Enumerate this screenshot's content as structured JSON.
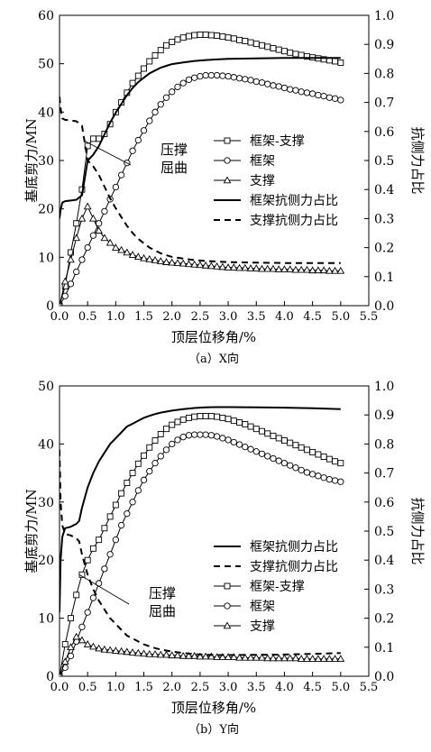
{
  "chart_data": [
    {
      "type": "line",
      "caption": "（a）X向",
      "xlabel": "顶层位移角/%",
      "ylabel": "基底剪力/MN",
      "y2label": "抗侧力占比",
      "xlim": [
        0,
        5.5
      ],
      "ylim": [
        0,
        60
      ],
      "y2lim": [
        0,
        1.0
      ],
      "xticks": [
        "0.0",
        "0.5",
        "1.0",
        "1.5",
        "2.0",
        "2.5",
        "3.0",
        "3.5",
        "4.0",
        "4.5",
        "5.0",
        "5.5"
      ],
      "yticks": [
        "0",
        "10",
        "20",
        "30",
        "40",
        "50",
        "60"
      ],
      "y2ticks": [
        "0.0",
        "0.1",
        "0.2",
        "0.3",
        "0.4",
        "0.5",
        "0.6",
        "0.7",
        "0.8",
        "0.9",
        "1.0"
      ],
      "annotation": {
        "lines": [
          "压撑",
          "屈曲"
        ],
        "point": [
          0.45,
          34.0
        ]
      },
      "legend": [
        "框架-支撑",
        "框架",
        "支撑",
        "框架抗侧力占比",
        "支撑抗侧力占比"
      ],
      "series": [
        {
          "name": "框架-支撑",
          "axis": "left",
          "marker": "square",
          "style": "solid",
          "x": [
            0,
            0.1,
            0.2,
            0.3,
            0.4,
            0.5,
            0.6,
            0.7,
            0.8,
            0.9,
            1.0,
            1.1,
            1.2,
            1.3,
            1.4,
            1.5,
            1.6,
            1.7,
            1.8,
            1.9,
            2.0,
            2.1,
            2.2,
            2.3,
            2.4,
            2.5,
            2.6,
            2.7,
            2.8,
            2.9,
            3.0,
            3.1,
            3.2,
            3.3,
            3.4,
            3.5,
            3.6,
            3.7,
            3.8,
            3.9,
            4.0,
            4.1,
            4.2,
            4.3,
            4.4,
            4.5,
            4.6,
            4.7,
            4.8,
            4.9,
            5.0
          ],
          "y": [
            0,
            4,
            11,
            17,
            24,
            33,
            34.5,
            34.5,
            35.5,
            37.5,
            40,
            42,
            44,
            46,
            47.5,
            49,
            50.5,
            51.7,
            52.8,
            53.8,
            54.5,
            55,
            55.4,
            55.7,
            55.9,
            56,
            56,
            55.9,
            55.8,
            55.6,
            55.4,
            55.2,
            54.9,
            54.7,
            54.4,
            54.1,
            53.8,
            53.5,
            53.2,
            52.9,
            52.6,
            52.3,
            52,
            51.8,
            51.5,
            51.3,
            51.1,
            50.9,
            50.7,
            50.5,
            50.2
          ]
        },
        {
          "name": "框架",
          "axis": "left",
          "marker": "circle",
          "style": "solid",
          "x": [
            0,
            0.1,
            0.2,
            0.3,
            0.4,
            0.5,
            0.6,
            0.7,
            0.8,
            0.9,
            1.0,
            1.1,
            1.2,
            1.3,
            1.4,
            1.5,
            1.6,
            1.7,
            1.8,
            1.9,
            2.0,
            2.1,
            2.2,
            2.3,
            2.4,
            2.5,
            2.6,
            2.7,
            2.8,
            2.9,
            3.0,
            3.1,
            3.2,
            3.3,
            3.4,
            3.5,
            3.6,
            3.7,
            3.8,
            3.9,
            4.0,
            4.1,
            4.2,
            4.3,
            4.4,
            4.5,
            4.6,
            4.7,
            4.8,
            4.9,
            5.0
          ],
          "y": [
            0,
            2,
            4.5,
            7,
            9.5,
            12,
            14.5,
            17,
            19.5,
            22,
            24.5,
            27,
            29.5,
            32,
            34.2,
            36.2,
            38.2,
            40,
            41.6,
            43,
            44.2,
            45.2,
            46,
            46.7,
            47.1,
            47.4,
            47.6,
            47.6,
            47.6,
            47.5,
            47.4,
            47.2,
            47,
            46.8,
            46.6,
            46.3,
            46.1,
            45.8,
            45.5,
            45.3,
            45,
            44.7,
            44.5,
            44.2,
            44,
            43.8,
            43.5,
            43.3,
            43,
            42.8,
            42.5
          ]
        },
        {
          "name": "支撑",
          "axis": "left",
          "marker": "triangle",
          "style": "solid",
          "x": [
            0,
            0.1,
            0.2,
            0.3,
            0.4,
            0.5,
            0.6,
            0.7,
            0.8,
            0.9,
            1.0,
            1.1,
            1.2,
            1.3,
            1.4,
            1.5,
            1.6,
            1.7,
            1.8,
            1.9,
            2.0,
            2.1,
            2.2,
            2.3,
            2.4,
            2.5,
            2.6,
            2.7,
            2.8,
            2.9,
            3.0,
            3.1,
            3.2,
            3.3,
            3.4,
            3.5,
            3.6,
            3.7,
            3.8,
            3.9,
            4.0,
            4.1,
            4.2,
            4.3,
            4.4,
            4.5,
            4.6,
            4.7,
            4.8,
            4.9,
            5.0
          ],
          "y": [
            0,
            5,
            9.5,
            14,
            18,
            20.5,
            18,
            15.5,
            14,
            13,
            12,
            11.5,
            11,
            10.5,
            10.1,
            9.8,
            9.6,
            9.4,
            9.2,
            9.0,
            8.9,
            8.8,
            8.7,
            8.6,
            8.5,
            8.4,
            8.3,
            8.2,
            8.1,
            8.0,
            7.9,
            7.9,
            7.8,
            7.8,
            7.7,
            7.7,
            7.6,
            7.6,
            7.6,
            7.5,
            7.5,
            7.5,
            7.4,
            7.4,
            7.4,
            7.3,
            7.3,
            7.3,
            7.2,
            7.2,
            7.2
          ]
        },
        {
          "name": "框架抗侧力占比",
          "axis": "right",
          "marker": "none",
          "style": "solid",
          "x": [
            0,
            0.02,
            0.05,
            0.1,
            0.2,
            0.3,
            0.4,
            0.45,
            0.5,
            0.6,
            0.7,
            0.8,
            0.9,
            1.0,
            1.1,
            1.2,
            1.3,
            1.4,
            1.5,
            1.6,
            1.7,
            1.8,
            1.9,
            2.0,
            2.2,
            2.4,
            2.6,
            2.8,
            3.0,
            3.5,
            4.0,
            4.5,
            5.0
          ],
          "y": [
            0.3,
            0.33,
            0.355,
            0.36,
            0.362,
            0.365,
            0.38,
            0.44,
            0.5,
            0.52,
            0.55,
            0.59,
            0.63,
            0.665,
            0.695,
            0.725,
            0.75,
            0.77,
            0.785,
            0.8,
            0.81,
            0.82,
            0.826,
            0.832,
            0.838,
            0.843,
            0.846,
            0.848,
            0.85,
            0.852,
            0.853,
            0.853,
            0.853
          ]
        },
        {
          "name": "支撑抗侧力占比",
          "axis": "right",
          "marker": "none",
          "style": "dashed",
          "x": [
            0,
            0.02,
            0.05,
            0.1,
            0.2,
            0.3,
            0.4,
            0.45,
            0.5,
            0.6,
            0.7,
            0.8,
            0.9,
            1.0,
            1.1,
            1.2,
            1.3,
            1.4,
            1.5,
            1.6,
            1.7,
            1.8,
            1.9,
            2.0,
            2.2,
            2.4,
            2.6,
            2.8,
            3.0,
            3.5,
            4.0,
            4.5,
            5.0
          ],
          "y": [
            0.72,
            0.68,
            0.645,
            0.64,
            0.638,
            0.635,
            0.62,
            0.56,
            0.5,
            0.48,
            0.45,
            0.41,
            0.37,
            0.335,
            0.305,
            0.275,
            0.25,
            0.23,
            0.215,
            0.2,
            0.19,
            0.18,
            0.174,
            0.168,
            0.162,
            0.157,
            0.154,
            0.152,
            0.15,
            0.148,
            0.147,
            0.147,
            0.147
          ]
        }
      ]
    },
    {
      "type": "line",
      "caption": "（b）Y向",
      "xlabel": "顶层位移角/%",
      "ylabel": "基底剪力/MN",
      "y2label": "抗侧力占比",
      "xlim": [
        0,
        5.5
      ],
      "ylim": [
        0,
        50
      ],
      "y2lim": [
        0,
        1.0
      ],
      "xticks": [
        "0.0",
        "0.5",
        "1.0",
        "1.5",
        "2.0",
        "2.5",
        "3.0",
        "3.5",
        "4.0",
        "4.5",
        "5.0",
        "5.5"
      ],
      "yticks": [
        "0",
        "10",
        "20",
        "30",
        "40",
        "50"
      ],
      "y2ticks": [
        "0.0",
        "0.1",
        "0.2",
        "0.3",
        "0.4",
        "0.5",
        "0.6",
        "0.7",
        "0.8",
        "0.9",
        "1.0"
      ],
      "annotation": {
        "lines": [
          "压撑",
          "屈曲"
        ],
        "point": [
          0.35,
          17.5
        ]
      },
      "legend": [
        "框架抗侧力占比",
        "支撑抗侧力占比",
        "框架-支撑",
        "框架",
        "支撑"
      ],
      "series": [
        {
          "name": "框架-支撑",
          "axis": "left",
          "marker": "square",
          "style": "solid",
          "x": [
            0,
            0.1,
            0.2,
            0.3,
            0.4,
            0.5,
            0.6,
            0.7,
            0.8,
            0.9,
            1.0,
            1.1,
            1.2,
            1.3,
            1.4,
            1.5,
            1.6,
            1.7,
            1.8,
            1.9,
            2.0,
            2.1,
            2.2,
            2.3,
            2.4,
            2.5,
            2.6,
            2.7,
            2.8,
            2.9,
            3.0,
            3.1,
            3.2,
            3.3,
            3.4,
            3.5,
            3.6,
            3.7,
            3.8,
            3.9,
            4.0,
            4.1,
            4.2,
            4.3,
            4.4,
            4.5,
            4.6,
            4.7,
            4.8,
            4.9,
            5.0
          ],
          "y": [
            0,
            5.5,
            10,
            14,
            17.5,
            20,
            22,
            23.5,
            25.5,
            27.5,
            29.5,
            31.5,
            33.3,
            35,
            36.6,
            38,
            39.4,
            40.6,
            41.7,
            42.6,
            43.3,
            43.8,
            44.2,
            44.5,
            44.7,
            44.8,
            44.8,
            44.8,
            44.7,
            44.5,
            44.3,
            44.0,
            43.7,
            43.4,
            43.0,
            42.6,
            42.2,
            41.8,
            41.4,
            41.0,
            40.6,
            40.2,
            39.8,
            39.4,
            39.0,
            38.6,
            38.2,
            37.8,
            37.4,
            37.0,
            36.7
          ]
        },
        {
          "name": "框架",
          "axis": "left",
          "marker": "circle",
          "style": "solid",
          "x": [
            0,
            0.1,
            0.2,
            0.3,
            0.4,
            0.5,
            0.6,
            0.7,
            0.8,
            0.9,
            1.0,
            1.1,
            1.2,
            1.3,
            1.4,
            1.5,
            1.6,
            1.7,
            1.8,
            1.9,
            2.0,
            2.1,
            2.2,
            2.3,
            2.4,
            2.5,
            2.6,
            2.7,
            2.8,
            2.9,
            3.0,
            3.1,
            3.2,
            3.3,
            3.4,
            3.5,
            3.6,
            3.7,
            3.8,
            3.9,
            4.0,
            4.1,
            4.2,
            4.3,
            4.4,
            4.5,
            4.6,
            4.7,
            4.8,
            4.9,
            5.0
          ],
          "y": [
            0,
            1.5,
            3.5,
            6,
            8.5,
            11,
            13.5,
            16,
            18.5,
            21,
            23.5,
            26,
            28,
            30,
            32,
            33.8,
            35.3,
            36.7,
            37.9,
            39,
            40,
            40.7,
            41.2,
            41.5,
            41.6,
            41.6,
            41.6,
            41.5,
            41.3,
            41.0,
            40.7,
            40.3,
            39.9,
            39.5,
            39.1,
            38.7,
            38.3,
            37.9,
            37.5,
            37.1,
            36.7,
            36.3,
            35.9,
            35.5,
            35.1,
            34.8,
            34.5,
            34.2,
            33.9,
            33.7,
            33.5
          ]
        },
        {
          "name": "支撑",
          "axis": "left",
          "marker": "triangle",
          "style": "solid",
          "x": [
            0,
            0.1,
            0.2,
            0.3,
            0.4,
            0.5,
            0.6,
            0.7,
            0.8,
            0.9,
            1.0,
            1.1,
            1.2,
            1.3,
            1.4,
            1.5,
            1.6,
            1.7,
            1.8,
            1.9,
            2.0,
            2.1,
            2.2,
            2.3,
            2.4,
            2.5,
            2.6,
            2.7,
            2.8,
            2.9,
            3.0,
            3.1,
            3.2,
            3.3,
            3.4,
            3.5,
            3.6,
            3.7,
            3.8,
            3.9,
            4.0,
            4.1,
            4.2,
            4.3,
            4.4,
            4.5,
            4.6,
            4.7,
            4.8,
            4.9,
            5.0
          ],
          "y": [
            0,
            2.5,
            5,
            6.8,
            6.2,
            5.5,
            5.1,
            4.8,
            4.6,
            4.5,
            4.4,
            4.3,
            4.2,
            4.1,
            4.0,
            3.9,
            3.8,
            3.8,
            3.7,
            3.7,
            3.6,
            3.6,
            3.5,
            3.5,
            3.5,
            3.4,
            3.4,
            3.4,
            3.3,
            3.3,
            3.3,
            3.3,
            3.2,
            3.2,
            3.2,
            3.2,
            3.2,
            3.1,
            3.1,
            3.1,
            3.1,
            3.1,
            3.1,
            3.0,
            3.0,
            3.0,
            3.0,
            3.0,
            3.0,
            3.0,
            3.0
          ]
        },
        {
          "name": "框架抗侧力占比",
          "axis": "right",
          "marker": "none",
          "style": "solid",
          "x": [
            0,
            0.02,
            0.05,
            0.1,
            0.2,
            0.3,
            0.35,
            0.4,
            0.5,
            0.6,
            0.7,
            0.8,
            0.9,
            1.0,
            1.1,
            1.2,
            1.3,
            1.4,
            1.5,
            1.6,
            1.7,
            1.8,
            2.0,
            2.2,
            2.4,
            2.6,
            2.8,
            3.0,
            3.5,
            4.0,
            4.5,
            5.0
          ],
          "y": [
            0.22,
            0.4,
            0.48,
            0.51,
            0.515,
            0.525,
            0.535,
            0.58,
            0.65,
            0.7,
            0.74,
            0.77,
            0.8,
            0.82,
            0.84,
            0.86,
            0.87,
            0.88,
            0.89,
            0.897,
            0.903,
            0.908,
            0.915,
            0.92,
            0.924,
            0.926,
            0.927,
            0.927,
            0.926,
            0.925,
            0.923,
            0.92
          ]
        },
        {
          "name": "支撑抗侧力占比",
          "axis": "right",
          "marker": "none",
          "style": "dashed",
          "x": [
            0,
            0.02,
            0.05,
            0.1,
            0.2,
            0.3,
            0.35,
            0.4,
            0.5,
            0.6,
            0.7,
            0.8,
            0.9,
            1.0,
            1.1,
            1.2,
            1.3,
            1.4,
            1.5,
            1.6,
            1.7,
            1.8,
            2.0,
            2.2,
            2.4,
            2.6,
            2.8,
            3.0,
            3.5,
            4.0,
            4.5,
            5.0
          ],
          "y": [
            0.78,
            0.6,
            0.52,
            0.49,
            0.485,
            0.475,
            0.465,
            0.42,
            0.35,
            0.3,
            0.26,
            0.23,
            0.2,
            0.18,
            0.16,
            0.14,
            0.13,
            0.12,
            0.11,
            0.103,
            0.097,
            0.092,
            0.085,
            0.08,
            0.076,
            0.074,
            0.073,
            0.073,
            0.074,
            0.075,
            0.077,
            0.08
          ]
        }
      ]
    }
  ]
}
